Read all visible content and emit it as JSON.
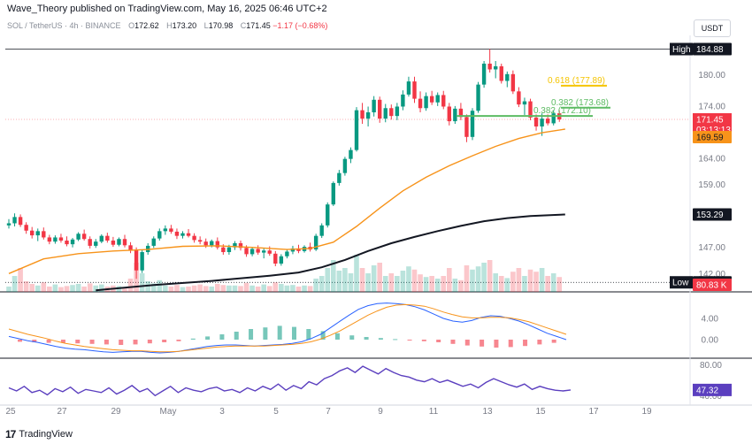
{
  "header": {
    "publisher_line": "Wave_Theory published on TradingView.com, May 16, 2025 06:46 UTC+2"
  },
  "legend": {
    "symbol": "SOL / TetherUS · 4h · BINANCE",
    "open_label": "O",
    "open": "172.62",
    "high_label": "H",
    "high": "173.20",
    "low_label": "L",
    "low": "170.98",
    "close_label": "C",
    "close": "171.45",
    "change": "−1.17 (−0.68%)"
  },
  "currency_button": "USDT",
  "footer": {
    "logo_glyph": "17",
    "brand": "TradingView"
  },
  "colors": {
    "up": "#089981",
    "down": "#f23645",
    "ma_orange": "#f7931a",
    "ma_black": "#131722",
    "fib_618": "#f5c400",
    "fib_382": "#5dbb63",
    "macd_line": "#2962ff",
    "rsi": "#5b3fbf"
  },
  "chart_data": {
    "type": "candlestick",
    "title": "SOL / TetherUS · 4h · BINANCE",
    "price_axis_ticks": [
      180.0,
      174.0,
      164.0,
      159.0,
      153.29,
      147.0,
      142.0
    ],
    "price_range": [
      138.5,
      187.5
    ],
    "x_tick_labels": [
      "25",
      "27",
      "29",
      "May",
      "3",
      "5",
      "7",
      "9",
      "11",
      "13",
      "15",
      "17",
      "19"
    ],
    "high_marker": {
      "label": "High",
      "value": "184.88"
    },
    "low_marker": {
      "label": "Low",
      "value": "140.32"
    },
    "current_price": {
      "value": "171.45",
      "countdown": "03:13:13"
    },
    "ma_orange_last": "169.59",
    "ma_black_last": "153.29",
    "volume_label": "80.83 K",
    "fib_levels": [
      {
        "ratio": "0.618",
        "price": 177.89,
        "label": "0.618 (177.89)"
      },
      {
        "ratio": "0.382",
        "price": 173.68,
        "label": "0.382 (173.68)"
      },
      {
        "ratio": "0.382",
        "price": 172.1,
        "label": "0.382 (172.10)"
      }
    ],
    "candles": [
      [
        151.2,
        152.4,
        150.6,
        151.6
      ],
      [
        151.6,
        153.5,
        151.0,
        152.8
      ],
      [
        152.8,
        153.3,
        150.9,
        151.3
      ],
      [
        151.3,
        151.8,
        149.6,
        150.2
      ],
      [
        150.2,
        150.9,
        148.7,
        149.3
      ],
      [
        149.3,
        150.6,
        148.2,
        150.1
      ],
      [
        150.1,
        150.8,
        148.5,
        148.9
      ],
      [
        148.9,
        149.4,
        147.6,
        148.1
      ],
      [
        148.1,
        149.3,
        147.7,
        148.9
      ],
      [
        148.9,
        149.6,
        147.9,
        148.3
      ],
      [
        148.3,
        149.1,
        147.2,
        147.6
      ],
      [
        147.6,
        148.8,
        147.0,
        148.5
      ],
      [
        148.5,
        149.9,
        148.2,
        149.6
      ],
      [
        149.6,
        150.4,
        148.3,
        148.6
      ],
      [
        148.6,
        149.1,
        146.8,
        147.3
      ],
      [
        147.3,
        148.6,
        146.9,
        148.1
      ],
      [
        148.1,
        149.5,
        147.8,
        149.2
      ],
      [
        149.2,
        149.8,
        147.9,
        148.3
      ],
      [
        148.3,
        149.0,
        147.1,
        147.5
      ],
      [
        147.5,
        148.9,
        147.2,
        148.6
      ],
      [
        148.6,
        149.4,
        147.0,
        147.4
      ],
      [
        147.4,
        148.0,
        145.9,
        146.5
      ],
      [
        146.5,
        147.0,
        141.0,
        142.6
      ],
      [
        142.6,
        146.6,
        142.1,
        146.1
      ],
      [
        146.1,
        147.8,
        145.6,
        147.3
      ],
      [
        147.3,
        149.1,
        146.9,
        148.7
      ],
      [
        148.7,
        150.6,
        148.3,
        150.1
      ],
      [
        150.1,
        151.2,
        149.4,
        150.6
      ],
      [
        150.6,
        151.3,
        149.6,
        150.0
      ],
      [
        150.0,
        150.6,
        148.6,
        149.2
      ],
      [
        149.2,
        150.1,
        148.7,
        149.7
      ],
      [
        149.7,
        150.5,
        148.9,
        149.2
      ],
      [
        149.2,
        149.7,
        147.9,
        148.4
      ],
      [
        148.4,
        149.1,
        147.6,
        148.1
      ],
      [
        148.1,
        148.7,
        146.9,
        147.4
      ],
      [
        147.4,
        148.5,
        147.0,
        148.2
      ],
      [
        148.2,
        148.9,
        146.6,
        147.0
      ],
      [
        147.0,
        147.6,
        145.6,
        146.1
      ],
      [
        146.1,
        147.5,
        145.6,
        147.0
      ],
      [
        147.0,
        148.2,
        146.5,
        147.8
      ],
      [
        147.8,
        148.3,
        146.4,
        146.9
      ],
      [
        146.9,
        147.4,
        145.2,
        145.7
      ],
      [
        145.7,
        147.1,
        145.3,
        146.7
      ],
      [
        146.7,
        147.4,
        145.6,
        146.0
      ],
      [
        146.0,
        146.9,
        144.9,
        146.4
      ],
      [
        146.4,
        147.2,
        145.4,
        145.8
      ],
      [
        145.8,
        146.3,
        143.4,
        143.9
      ],
      [
        143.9,
        145.7,
        143.5,
        145.3
      ],
      [
        145.3,
        146.6,
        144.9,
        146.2
      ],
      [
        146.2,
        147.3,
        145.7,
        146.8
      ],
      [
        146.8,
        147.5,
        145.9,
        146.3
      ],
      [
        146.3,
        147.4,
        146.0,
        147.1
      ],
      [
        147.1,
        147.9,
        146.2,
        146.6
      ],
      [
        146.6,
        149.6,
        146.3,
        149.2
      ],
      [
        149.2,
        151.6,
        148.8,
        151.2
      ],
      [
        151.2,
        155.6,
        150.8,
        155.2
      ],
      [
        155.2,
        159.6,
        154.9,
        159.3
      ],
      [
        159.3,
        161.8,
        158.8,
        161.2
      ],
      [
        161.2,
        164.3,
        160.7,
        163.9
      ],
      [
        163.9,
        166.1,
        163.1,
        165.6
      ],
      [
        165.6,
        173.8,
        165.3,
        173.2
      ],
      [
        173.2,
        174.6,
        170.6,
        171.6
      ],
      [
        171.6,
        173.9,
        170.1,
        172.8
      ],
      [
        172.8,
        175.9,
        172.0,
        175.2
      ],
      [
        175.2,
        175.8,
        170.8,
        171.6
      ],
      [
        171.6,
        174.4,
        170.9,
        173.6
      ],
      [
        173.6,
        174.3,
        171.4,
        172.1
      ],
      [
        172.1,
        174.6,
        171.3,
        173.9
      ],
      [
        173.9,
        177.0,
        173.2,
        176.2
      ],
      [
        176.2,
        179.6,
        175.8,
        178.7
      ],
      [
        178.7,
        179.6,
        174.6,
        175.4
      ],
      [
        175.4,
        176.8,
        172.8,
        173.6
      ],
      [
        173.6,
        176.6,
        173.1,
        175.9
      ],
      [
        175.9,
        176.9,
        174.2,
        174.7
      ],
      [
        174.7,
        176.6,
        174.0,
        176.1
      ],
      [
        176.1,
        176.9,
        173.4,
        173.9
      ],
      [
        173.9,
        174.6,
        170.3,
        171.1
      ],
      [
        171.1,
        174.0,
        170.6,
        173.5
      ],
      [
        173.5,
        174.6,
        171.3,
        171.9
      ],
      [
        171.9,
        172.4,
        167.1,
        168.1
      ],
      [
        168.1,
        173.6,
        167.5,
        173.1
      ],
      [
        173.1,
        178.6,
        172.7,
        178.1
      ],
      [
        178.1,
        182.6,
        177.5,
        182.1
      ],
      [
        182.1,
        184.88,
        180.4,
        181.0
      ],
      [
        181.0,
        182.6,
        179.3,
        181.6
      ],
      [
        181.6,
        182.1,
        178.3,
        178.8
      ],
      [
        178.8,
        180.6,
        177.6,
        180.1
      ],
      [
        180.1,
        180.8,
        176.3,
        176.8
      ],
      [
        176.8,
        177.6,
        173.8,
        174.3
      ],
      [
        174.3,
        175.6,
        172.3,
        174.9
      ],
      [
        174.9,
        175.4,
        171.3,
        171.8
      ],
      [
        171.8,
        172.4,
        169.3,
        170.1
      ],
      [
        170.1,
        172.6,
        168.3,
        171.6
      ],
      [
        171.6,
        172.4,
        170.3,
        170.7
      ],
      [
        170.7,
        173.2,
        170.3,
        172.6
      ],
      [
        172.62,
        173.2,
        170.98,
        171.45
      ]
    ],
    "ma_orange": [
      [
        0,
        142.0
      ],
      [
        6,
        144.8
      ],
      [
        12,
        145.8
      ],
      [
        18,
        146.3
      ],
      [
        24,
        146.6
      ],
      [
        30,
        147.2
      ],
      [
        36,
        147.3
      ],
      [
        42,
        147.0
      ],
      [
        48,
        146.6
      ],
      [
        52,
        146.8
      ],
      [
        56,
        148.0
      ],
      [
        60,
        151.0
      ],
      [
        64,
        154.5
      ],
      [
        68,
        157.8
      ],
      [
        72,
        160.4
      ],
      [
        76,
        162.6
      ],
      [
        80,
        164.5
      ],
      [
        84,
        166.3
      ],
      [
        88,
        167.8
      ],
      [
        92,
        168.9
      ],
      [
        96,
        169.59
      ]
    ],
    "ma_black": [
      [
        15,
        138.8
      ],
      [
        25,
        139.8
      ],
      [
        35,
        140.6
      ],
      [
        45,
        141.6
      ],
      [
        50,
        142.2
      ],
      [
        54,
        143.2
      ],
      [
        58,
        144.6
      ],
      [
        62,
        146.3
      ],
      [
        66,
        147.8
      ],
      [
        70,
        149.0
      ],
      [
        74,
        150.1
      ],
      [
        78,
        151.1
      ],
      [
        82,
        152.0
      ],
      [
        86,
        152.6
      ],
      [
        90,
        153.0
      ],
      [
        96,
        153.29
      ]
    ],
    "volume": [
      [
        0.1,
        1
      ],
      [
        0.3,
        1
      ],
      [
        0.45,
        0
      ],
      [
        0.2,
        0
      ],
      [
        0.15,
        0
      ],
      [
        0.12,
        1
      ],
      [
        0.18,
        0
      ],
      [
        0.1,
        0
      ],
      [
        0.14,
        1
      ],
      [
        0.09,
        0
      ],
      [
        0.11,
        0
      ],
      [
        0.13,
        1
      ],
      [
        0.15,
        1
      ],
      [
        0.1,
        0
      ],
      [
        0.16,
        0
      ],
      [
        0.12,
        1
      ],
      [
        0.14,
        1
      ],
      [
        0.1,
        0
      ],
      [
        0.12,
        0
      ],
      [
        0.11,
        1
      ],
      [
        0.09,
        0
      ],
      [
        0.25,
        0
      ],
      [
        0.55,
        0
      ],
      [
        0.35,
        1
      ],
      [
        0.2,
        1
      ],
      [
        0.16,
        1
      ],
      [
        0.22,
        1
      ],
      [
        0.12,
        1
      ],
      [
        0.1,
        0
      ],
      [
        0.13,
        0
      ],
      [
        0.09,
        1
      ],
      [
        0.1,
        0
      ],
      [
        0.12,
        0
      ],
      [
        0.14,
        0
      ],
      [
        0.11,
        0
      ],
      [
        0.1,
        1
      ],
      [
        0.15,
        0
      ],
      [
        0.13,
        0
      ],
      [
        0.12,
        1
      ],
      [
        0.12,
        1
      ],
      [
        0.11,
        0
      ],
      [
        0.17,
        0
      ],
      [
        0.12,
        1
      ],
      [
        0.1,
        0
      ],
      [
        0.14,
        1
      ],
      [
        0.11,
        0
      ],
      [
        0.18,
        0
      ],
      [
        0.15,
        1
      ],
      [
        0.12,
        1
      ],
      [
        0.13,
        1
      ],
      [
        0.1,
        0
      ],
      [
        0.12,
        1
      ],
      [
        0.11,
        0
      ],
      [
        0.25,
        1
      ],
      [
        0.3,
        1
      ],
      [
        0.45,
        1
      ],
      [
        0.6,
        1
      ],
      [
        0.4,
        1
      ],
      [
        0.45,
        1
      ],
      [
        0.35,
        1
      ],
      [
        0.7,
        1
      ],
      [
        0.45,
        0
      ],
      [
        0.35,
        1
      ],
      [
        0.5,
        1
      ],
      [
        0.55,
        0
      ],
      [
        0.3,
        1
      ],
      [
        0.35,
        0
      ],
      [
        0.3,
        1
      ],
      [
        0.4,
        1
      ],
      [
        0.48,
        1
      ],
      [
        0.42,
        0
      ],
      [
        0.33,
        0
      ],
      [
        0.28,
        1
      ],
      [
        0.3,
        0
      ],
      [
        0.25,
        1
      ],
      [
        0.3,
        0
      ],
      [
        0.45,
        0
      ],
      [
        0.25,
        1
      ],
      [
        0.22,
        0
      ],
      [
        0.5,
        0
      ],
      [
        0.42,
        1
      ],
      [
        0.48,
        1
      ],
      [
        0.55,
        1
      ],
      [
        0.6,
        0
      ],
      [
        0.35,
        1
      ],
      [
        0.3,
        0
      ],
      [
        0.26,
        1
      ],
      [
        0.38,
        0
      ],
      [
        0.45,
        0
      ],
      [
        0.3,
        1
      ],
      [
        0.42,
        0
      ],
      [
        0.38,
        0
      ],
      [
        0.45,
        1
      ],
      [
        0.3,
        0
      ],
      [
        0.35,
        1
      ],
      [
        0.28,
        0
      ]
    ],
    "macd_ticks": [
      "4.00",
      "0.00"
    ],
    "macd_line": [
      0.6,
      0.2,
      -0.2,
      -0.5,
      -0.9,
      -1.3,
      -1.6,
      -1.8,
      -1.9,
      -2.1,
      -2.3,
      -2.4,
      -2.3,
      -2.2,
      -2.2,
      -2.4,
      -2.5,
      -2.4,
      -2.2,
      -1.9,
      -1.6,
      -1.3,
      -1.1,
      -1.0,
      -1.0,
      -1.1,
      -1.2,
      -1.1,
      -1.0,
      -0.9,
      -0.7,
      -0.4,
      0.2,
      1.0,
      2.2,
      3.4,
      4.6,
      5.7,
      6.4,
      6.8,
      6.9,
      6.8,
      6.6,
      6.2,
      5.6,
      4.8,
      4.0,
      3.5,
      3.3,
      3.6,
      4.2,
      4.5,
      4.4,
      4.0,
      3.5,
      2.8,
      2.0,
      1.2,
      0.6,
      0.0
    ],
    "macd_signal": [
      2.0,
      1.5,
      1.0,
      0.6,
      0.2,
      -0.3,
      -0.7,
      -1.0,
      -1.3,
      -1.5,
      -1.7,
      -1.9,
      -2.0,
      -2.1,
      -2.1,
      -2.2,
      -2.3,
      -2.3,
      -2.2,
      -2.0,
      -1.8,
      -1.6,
      -1.4,
      -1.3,
      -1.2,
      -1.2,
      -1.2,
      -1.2,
      -1.1,
      -1.0,
      -0.9,
      -0.7,
      -0.4,
      0.1,
      0.8,
      1.6,
      2.6,
      3.6,
      4.6,
      5.4,
      6.1,
      6.5,
      6.6,
      6.5,
      6.3,
      5.8,
      5.2,
      4.7,
      4.3,
      4.1,
      4.1,
      4.2,
      4.2,
      4.1,
      3.8,
      3.4,
      2.8,
      2.2,
      1.6,
      1.0
    ],
    "macd_hist_last": [
      -0.4,
      -0.5,
      -0.6,
      -0.6,
      -0.7,
      -0.8,
      -0.9,
      -1.0,
      -0.9,
      -0.7,
      -0.5,
      -0.3,
      0.2,
      0.6,
      1.0,
      1.5,
      2.0,
      2.3,
      2.6,
      2.4,
      2.0,
      1.6,
      1.2,
      0.8,
      0.5,
      0.3,
      0.1,
      -0.1,
      -0.3,
      -0.5,
      -0.8,
      -1.1,
      -1.3,
      -1.5,
      -1.4,
      -1.2,
      -0.9,
      -0.6
    ],
    "rsi_ticks": [
      "80.00",
      "40.00"
    ],
    "rsi_last": "47.32",
    "rsi": [
      50,
      46,
      52,
      44,
      47,
      41,
      49,
      45,
      51,
      43,
      48,
      46,
      44,
      50,
      42,
      47,
      53,
      45,
      49,
      40,
      46,
      52,
      44,
      50,
      47,
      45,
      49,
      51,
      46,
      48,
      44,
      50,
      46,
      52,
      48,
      55,
      47,
      53,
      49,
      58,
      54,
      62,
      66,
      72,
      76,
      70,
      78,
      73,
      68,
      75,
      70,
      66,
      64,
      60,
      58,
      62,
      57,
      60,
      56,
      52,
      55,
      50,
      57,
      62,
      58,
      54,
      51,
      55,
      48,
      52,
      49,
      47,
      46,
      47.32
    ]
  }
}
